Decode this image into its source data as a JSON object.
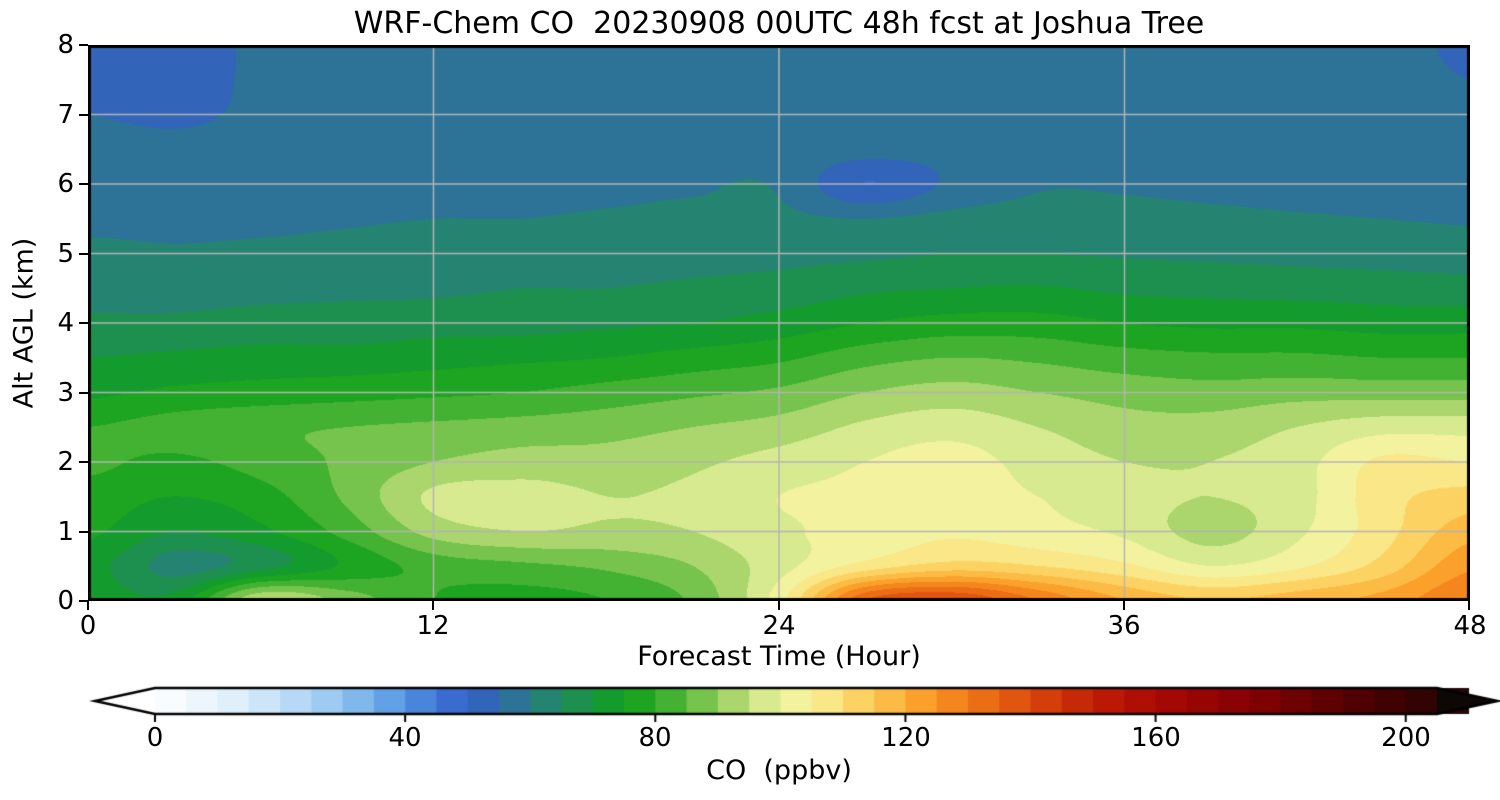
{
  "chart_data": {
    "type": "heatmap",
    "title": "WRF-Chem CO  20230908 00UTC 48h fcst at Joshua Tree",
    "xlabel": "Forecast Time (Hour)",
    "ylabel": "Alt AGL (km)",
    "units": "ppbv",
    "xlim": [
      0,
      48
    ],
    "ylim": [
      0,
      8
    ],
    "grid": true,
    "grid_color": "#b4b4b4",
    "contour_levels": {
      "min": 0,
      "max": 210,
      "step": 5,
      "extend": "both"
    },
    "x_hours": [
      0,
      3,
      6,
      9,
      12,
      15,
      18,
      21,
      24,
      27,
      30,
      33,
      36,
      39,
      42,
      45,
      48
    ],
    "y_alt_km": [
      0,
      0.5,
      1,
      1.5,
      2,
      2.5,
      3,
      3.5,
      4,
      4.5,
      5,
      5.5,
      6,
      6.5,
      7,
      7.5,
      8
    ],
    "co_ppbv_rows_by_altitude": [
      [
        73,
        72,
        95,
        88,
        80,
        78,
        80,
        86,
        103,
        135,
        140,
        130,
        120,
        115,
        118,
        122,
        130
      ],
      [
        72,
        63,
        68,
        76,
        82,
        84,
        86,
        90,
        98,
        107,
        112,
        110,
        106,
        100,
        104,
        112,
        124
      ],
      [
        76,
        70,
        74,
        82,
        92,
        95,
        94,
        95,
        99,
        102,
        104,
        102,
        99,
        93,
        99,
        108,
        118
      ],
      [
        78,
        75,
        78,
        86,
        96,
        97,
        95,
        96,
        100,
        101,
        102,
        100,
        97,
        95,
        98,
        108,
        112
      ],
      [
        81,
        79,
        82,
        86,
        90,
        92,
        92,
        94,
        97,
        100,
        102,
        98,
        95,
        95,
        98,
        106,
        105
      ],
      [
        80,
        82,
        84,
        85,
        86,
        87,
        88,
        90,
        92,
        96,
        98,
        95,
        92,
        92,
        95,
        98,
        98
      ],
      [
        74,
        76,
        77,
        78,
        79,
        80,
        82,
        84,
        86,
        90,
        92,
        90,
        88,
        87,
        88,
        88,
        88
      ],
      [
        70,
        71,
        72,
        72,
        73,
        74,
        75,
        77,
        79,
        83,
        85,
        84,
        82,
        81,
        81,
        80,
        80
      ],
      [
        66,
        66,
        67,
        67,
        68,
        68,
        69,
        70,
        72,
        75,
        77,
        77,
        75,
        74,
        74,
        73,
        73
      ],
      [
        63,
        63,
        63.5,
        64,
        64,
        65,
        65,
        66,
        67,
        69,
        70,
        70.5,
        69,
        68.5,
        68,
        67.5,
        67
      ],
      [
        61,
        60.5,
        61,
        61.5,
        62,
        62,
        62.5,
        63,
        63.5,
        64,
        65,
        65,
        64.5,
        64,
        63.5,
        63,
        62.5
      ],
      [
        59,
        59,
        59,
        59.5,
        60,
        60,
        60.5,
        61,
        61,
        60,
        61.5,
        62,
        61.5,
        61,
        60.5,
        60,
        59.5
      ],
      [
        58,
        57.5,
        58,
        58,
        58.5,
        59,
        59,
        59.5,
        59.5,
        50,
        56,
        59.5,
        59.5,
        59,
        58.5,
        58,
        57.5
      ],
      [
        57,
        56.5,
        57,
        57,
        57.5,
        58,
        58,
        58.5,
        58.5,
        57,
        57,
        58.5,
        58.5,
        58,
        58,
        57,
        56.5
      ],
      [
        55,
        54,
        56,
        56.5,
        57,
        57,
        57.5,
        58,
        58,
        57.5,
        58,
        58,
        58,
        57.5,
        57,
        56.5,
        55.5
      ],
      [
        53,
        52.5,
        56,
        56.5,
        57,
        57,
        57.5,
        57.5,
        58,
        58,
        58,
        58,
        58,
        57.5,
        57,
        56,
        55
      ],
      [
        52,
        52,
        56,
        56.5,
        57,
        57,
        57.5,
        57.5,
        58,
        58,
        58,
        58,
        58,
        57.5,
        57,
        56,
        54.5
      ]
    ]
  },
  "axes": {
    "x_ticks": [
      0,
      12,
      24,
      36,
      48
    ],
    "y_ticks": [
      0,
      1,
      2,
      3,
      4,
      5,
      6,
      7,
      8
    ]
  },
  "colorbar": {
    "label": "CO  (ppbv)",
    "ticks": [
      0,
      40,
      80,
      120,
      160,
      200
    ],
    "arrow_low_color": "#ffffff",
    "arrow_high_color": "#0d0806",
    "outline_color": "#000000",
    "stops": [
      [
        0,
        "#ffffff"
      ],
      [
        5,
        "#f3f9fe"
      ],
      [
        10,
        "#e7f3fc"
      ],
      [
        15,
        "#d7eafa"
      ],
      [
        20,
        "#c3e0f7"
      ],
      [
        25,
        "#aad2f3"
      ],
      [
        30,
        "#8fc3ee"
      ],
      [
        35,
        "#70ade8"
      ],
      [
        40,
        "#5494e2"
      ],
      [
        45,
        "#3f76d6"
      ],
      [
        50,
        "#3461c9"
      ],
      [
        55,
        "#2f69a8"
      ],
      [
        60,
        "#297c86"
      ],
      [
        65,
        "#218a5e"
      ],
      [
        70,
        "#189540"
      ],
      [
        75,
        "#0fa01c"
      ],
      [
        80,
        "#2aa826"
      ],
      [
        85,
        "#5cb93e"
      ],
      [
        90,
        "#90cc5c"
      ],
      [
        95,
        "#c3e07e"
      ],
      [
        100,
        "#ecf3a2"
      ],
      [
        105,
        "#f9f09b"
      ],
      [
        110,
        "#fbde72"
      ],
      [
        115,
        "#fcc853"
      ],
      [
        120,
        "#fbad36"
      ],
      [
        125,
        "#f99220"
      ],
      [
        130,
        "#f07a19"
      ],
      [
        135,
        "#e66111"
      ],
      [
        140,
        "#d9490c"
      ],
      [
        145,
        "#cc3208"
      ],
      [
        150,
        "#c01f06"
      ],
      [
        155,
        "#b51205"
      ],
      [
        160,
        "#a90a04"
      ],
      [
        165,
        "#9d0504"
      ],
      [
        170,
        "#910204"
      ],
      [
        175,
        "#840103"
      ],
      [
        180,
        "#750103"
      ],
      [
        185,
        "#660102"
      ],
      [
        190,
        "#570102"
      ],
      [
        195,
        "#470101"
      ],
      [
        200,
        "#380101"
      ],
      [
        205,
        "#2a0503"
      ],
      [
        210,
        "#1c0a06"
      ]
    ]
  }
}
